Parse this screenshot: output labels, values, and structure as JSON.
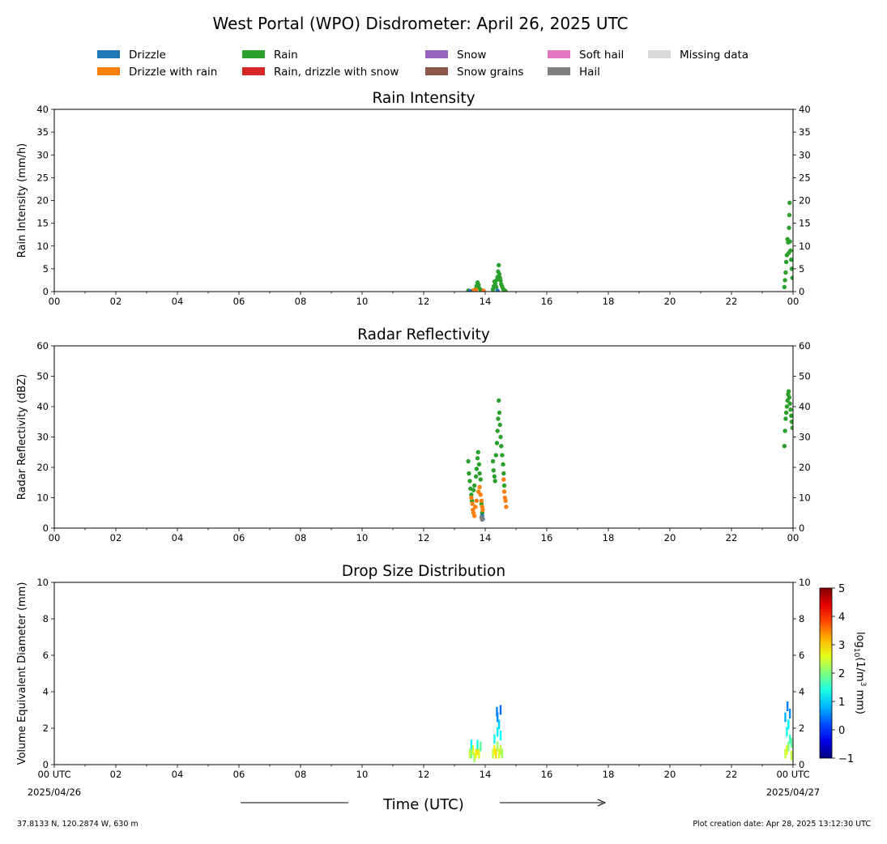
{
  "title": "West Portal (WPO) Disdrometer: April 26, 2025 UTC",
  "legend": [
    {
      "label": "Drizzle",
      "color": "#1f77b4"
    },
    {
      "label": "Drizzle with rain",
      "color": "#ff7f0e"
    },
    {
      "label": "Rain",
      "color": "#2ca02c"
    },
    {
      "label": "Rain, drizzle with snow",
      "color": "#d62728"
    },
    {
      "label": "Snow",
      "color": "#9467bd"
    },
    {
      "label": "Snow grains",
      "color": "#8c564b"
    },
    {
      "label": "Soft hail",
      "color": "#e377c2"
    },
    {
      "label": "Hail",
      "color": "#7f7f7f"
    },
    {
      "label": "Missing data",
      "color": "#d9d9d9"
    }
  ],
  "xlabel": "Time (UTC)",
  "x_start_label": [
    "00 UTC",
    "2025/04/26"
  ],
  "x_end_label": [
    "00 UTC",
    "2025/04/27"
  ],
  "x_ticks": [
    "00",
    "02",
    "04",
    "06",
    "08",
    "10",
    "12",
    "14",
    "16",
    "18",
    "20",
    "22",
    "00"
  ],
  "footer_left": "37.8133 N, 120.2874 W, 630 m",
  "footer_right": "Plot creation date: Apr 28, 2025 13:12:30 UTC",
  "colorbar": {
    "label": "log10(1/m^3 mm)",
    "ticks": [
      "5",
      "4",
      "3",
      "2",
      "1",
      "0",
      "−1"
    ],
    "range": [
      -1,
      5
    ]
  },
  "chart_data": [
    {
      "type": "scatter",
      "title": "Rain Intensity",
      "xlabel": "",
      "ylabel": "Rain Intensity (mm/h)",
      "xlim": [
        0,
        24
      ],
      "ylim": [
        0,
        40
      ],
      "y_ticks": [
        0,
        5,
        10,
        15,
        20,
        25,
        30,
        35,
        40
      ],
      "grid": false,
      "series": [
        {
          "name": "Rain",
          "color": "#2ca02c",
          "points": [
            [
              13.45,
              0.2
            ],
            [
              13.55,
              0.1
            ],
            [
              13.65,
              0.3
            ],
            [
              13.7,
              0.6
            ],
            [
              13.72,
              1.2
            ],
            [
              13.75,
              2.0
            ],
            [
              13.78,
              1.5
            ],
            [
              13.8,
              0.8
            ],
            [
              13.85,
              0.4
            ],
            [
              13.9,
              0.2
            ],
            [
              14.25,
              0.5
            ],
            [
              14.28,
              1.2
            ],
            [
              14.3,
              2.2
            ],
            [
              14.33,
              1.8
            ],
            [
              14.36,
              1.0
            ],
            [
              14.38,
              2.6
            ],
            [
              14.4,
              3.2
            ],
            [
              14.42,
              4.4
            ],
            [
              14.44,
              5.8
            ],
            [
              14.46,
              3.8
            ],
            [
              14.48,
              3.0
            ],
            [
              14.5,
              2.4
            ],
            [
              14.52,
              1.6
            ],
            [
              14.55,
              1.1
            ],
            [
              14.58,
              0.6
            ],
            [
              14.62,
              0.3
            ],
            [
              14.66,
              0.1
            ],
            [
              23.72,
              1.0
            ],
            [
              23.74,
              2.5
            ],
            [
              23.76,
              4.2
            ],
            [
              23.78,
              6.5
            ],
            [
              23.8,
              8.0
            ],
            [
              23.82,
              11.5
            ],
            [
              23.84,
              10.8
            ],
            [
              23.86,
              8.5
            ],
            [
              23.87,
              14.0
            ],
            [
              23.88,
              16.8
            ],
            [
              23.89,
              19.5
            ],
            [
              23.9,
              11.0
            ],
            [
              23.92,
              9.0
            ],
            [
              23.94,
              7.0
            ],
            [
              23.96,
              5.0
            ],
            [
              23.98,
              3.0
            ]
          ]
        },
        {
          "name": "Drizzle with rain",
          "color": "#ff7f0e",
          "points": [
            [
              13.6,
              0.2
            ],
            [
              13.7,
              0.4
            ],
            [
              13.95,
              0.2
            ]
          ]
        },
        {
          "name": "Drizzle",
          "color": "#1f77b4",
          "points": [
            [
              13.5,
              0.1
            ],
            [
              14.4,
              0.2
            ]
          ]
        }
      ]
    },
    {
      "type": "scatter",
      "title": "Radar Reflectivity",
      "xlabel": "",
      "ylabel": "Radar Reflectivity (dBZ)",
      "xlim": [
        0,
        24
      ],
      "ylim": [
        0,
        60
      ],
      "y_ticks": [
        0,
        10,
        20,
        30,
        40,
        50,
        60
      ],
      "grid": false,
      "series": [
        {
          "name": "Rain",
          "color": "#2ca02c",
          "points": [
            [
              13.45,
              22.0
            ],
            [
              13.47,
              18.0
            ],
            [
              13.5,
              15.5
            ],
            [
              13.52,
              13.0
            ],
            [
              13.55,
              11.0
            ],
            [
              13.57,
              9.0
            ],
            [
              13.62,
              12.5
            ],
            [
              13.65,
              14.0
            ],
            [
              13.7,
              17.0
            ],
            [
              13.72,
              19.5
            ],
            [
              13.75,
              23.0
            ],
            [
              13.77,
              25.0
            ],
            [
              13.8,
              21.0
            ],
            [
              13.82,
              18.0
            ],
            [
              13.85,
              16.0
            ],
            [
              13.88,
              8.0
            ],
            [
              13.9,
              5.0
            ],
            [
              14.25,
              22.0
            ],
            [
              14.27,
              19.0
            ],
            [
              14.3,
              17.0
            ],
            [
              14.32,
              15.5
            ],
            [
              14.35,
              24.0
            ],
            [
              14.38,
              28.0
            ],
            [
              14.4,
              32.0
            ],
            [
              14.42,
              36.0
            ],
            [
              14.44,
              42.0
            ],
            [
              14.46,
              38.0
            ],
            [
              14.48,
              34.0
            ],
            [
              14.5,
              30.0
            ],
            [
              14.52,
              27.0
            ],
            [
              14.55,
              24.0
            ],
            [
              14.58,
              21.0
            ],
            [
              14.6,
              18.0
            ],
            [
              14.62,
              14.0
            ],
            [
              23.72,
              27.0
            ],
            [
              23.74,
              32.0
            ],
            [
              23.76,
              36.0
            ],
            [
              23.78,
              38.0
            ],
            [
              23.8,
              40.0
            ],
            [
              23.82,
              42.0
            ],
            [
              23.84,
              44.0
            ],
            [
              23.86,
              45.0
            ],
            [
              23.88,
              43.0
            ],
            [
              23.9,
              41.0
            ],
            [
              23.92,
              39.0
            ],
            [
              23.94,
              37.0
            ],
            [
              23.96,
              35.0
            ],
            [
              23.98,
              33.0
            ]
          ]
        },
        {
          "name": "Drizzle with rain",
          "color": "#ff7f0e",
          "points": [
            [
              13.55,
              10.0
            ],
            [
              13.58,
              8.0
            ],
            [
              13.6,
              6.0
            ],
            [
              13.62,
              5.0
            ],
            [
              13.65,
              4.0
            ],
            [
              13.68,
              7.0
            ],
            [
              13.72,
              9.0
            ],
            [
              13.78,
              12.0
            ],
            [
              13.82,
              13.5
            ],
            [
              13.85,
              11.0
            ],
            [
              13.88,
              9.0
            ],
            [
              13.9,
              7.0
            ],
            [
              13.92,
              6.0
            ],
            [
              14.6,
              16.0
            ],
            [
              14.62,
              12.0
            ],
            [
              14.64,
              10.0
            ],
            [
              14.66,
              9.0
            ],
            [
              14.68,
              7.0
            ]
          ]
        },
        {
          "name": "Drizzle",
          "color": "#1f77b4",
          "points": [
            [
              13.9,
              4.0
            ],
            [
              13.92,
              3.0
            ]
          ]
        },
        {
          "name": "Hail",
          "color": "#7f7f7f",
          "points": [
            [
              13.88,
              3.5
            ],
            [
              13.9,
              2.8
            ]
          ]
        }
      ]
    },
    {
      "type": "heatmap",
      "title": "Drop Size Distribution",
      "xlabel": "Time (UTC)",
      "ylabel": "Volume Equivalent Diameter (mm)",
      "xlim": [
        0,
        24
      ],
      "ylim": [
        0,
        10
      ],
      "y_ticks": [
        0,
        2,
        4,
        6,
        8,
        10
      ],
      "grid": false,
      "cells": [
        [
          13.5,
          0.6,
          2.4
        ],
        [
          13.55,
          0.6,
          2.0
        ],
        [
          13.6,
          0.8,
          2.6
        ],
        [
          13.65,
          0.4,
          2.2
        ],
        [
          13.7,
          0.6,
          2.8
        ],
        [
          13.75,
          0.8,
          3.0
        ],
        [
          13.8,
          0.6,
          2.6
        ],
        [
          13.85,
          1.0,
          1.8
        ],
        [
          13.55,
          1.1,
          1.2
        ],
        [
          13.75,
          1.1,
          1.4
        ],
        [
          14.25,
          0.6,
          2.4
        ],
        [
          14.3,
          0.8,
          2.8
        ],
        [
          14.35,
          0.6,
          3.0
        ],
        [
          14.4,
          1.0,
          2.2
        ],
        [
          14.45,
          0.6,
          2.6
        ],
        [
          14.5,
          0.8,
          2.4
        ],
        [
          14.55,
          0.6,
          2.2
        ],
        [
          14.3,
          1.4,
          1.4
        ],
        [
          14.4,
          1.8,
          1.2
        ],
        [
          14.45,
          2.2,
          1.0
        ],
        [
          14.5,
          1.6,
          1.2
        ],
        [
          14.4,
          2.6,
          0.6
        ],
        [
          14.5,
          3.0,
          0.4
        ],
        [
          14.38,
          2.9,
          0.5
        ],
        [
          23.75,
          0.6,
          2.4
        ],
        [
          23.8,
          0.8,
          2.6
        ],
        [
          23.85,
          1.0,
          2.0
        ],
        [
          23.9,
          1.4,
          1.6
        ],
        [
          23.8,
          1.8,
          1.4
        ],
        [
          23.85,
          2.2,
          1.2
        ],
        [
          23.75,
          2.6,
          0.8
        ],
        [
          23.9,
          2.8,
          0.6
        ],
        [
          23.82,
          3.2,
          0.5
        ],
        [
          23.95,
          1.2,
          1.8
        ],
        [
          23.95,
          0.5,
          2.4
        ]
      ]
    }
  ]
}
